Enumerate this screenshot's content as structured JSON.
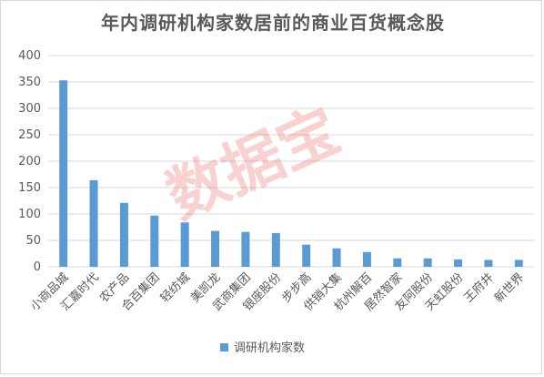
{
  "colors": {
    "bar": "#5b9bd5",
    "grid": "#d9d9d9",
    "text": "#595959"
  },
  "watermark_text": "数据宝",
  "chart_data": {
    "type": "bar",
    "title": "年内调研机构家数居前的商业百货概念股",
    "categories": [
      "小商品城",
      "汇嘉时代",
      "农产品",
      "合百集团",
      "轻纺城",
      "美凯龙",
      "武商集团",
      "银座股份",
      "步步高",
      "供销大集",
      "杭州解百",
      "居然智家",
      "友阿股份",
      "天虹股份",
      "王府井",
      "新世界"
    ],
    "series": [
      {
        "name": "调研机构家数",
        "values": [
          353,
          164,
          121,
          97,
          84,
          68,
          66,
          64,
          42,
          35,
          28,
          16,
          16,
          14,
          13,
          13
        ]
      }
    ],
    "ylim": [
      0,
      400
    ],
    "yticks": [
      0,
      50,
      100,
      150,
      200,
      250,
      300,
      350,
      400
    ],
    "grid": true,
    "legend_position": "bottom"
  }
}
